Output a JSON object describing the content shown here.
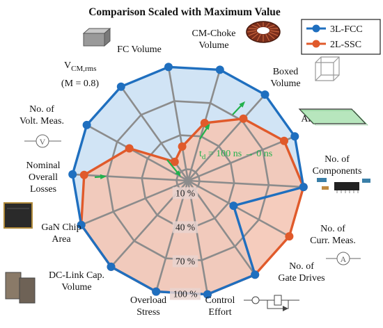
{
  "chart_data": {
    "type": "radar",
    "title": "Comparison Scaled with Maximum Value",
    "categories": [
      "CM-Choke Volume",
      "Boxed Volume",
      "Area PCB",
      "No. of Components",
      "No. of Curr. Meas.",
      "No. of Gate Drives",
      "Control Effort",
      "Overload Stress",
      "DC-Link Cap. Volume",
      "GaN Chip Area",
      "Nominal Overall Losses",
      "No. of Volt. Meas.",
      "VCM,rms (M = 0.8)",
      "FC Volume"
    ],
    "vcm_label": {
      "main": "V",
      "sub": "CM,rms",
      "cond": "(M = 0.8)"
    },
    "ring_labels": [
      "10 %",
      "40 %",
      "70 %",
      "100 %"
    ],
    "ring_values": [
      0.1,
      0.4,
      0.7,
      1.0
    ],
    "range": [
      0,
      1
    ],
    "series": [
      {
        "name": "3L-FCC",
        "color": "#1f6fbf",
        "fill": "#cfe3f4",
        "values": [
          1.0,
          1.0,
          1.0,
          1.0,
          0.45,
          1.0,
          1.0,
          1.0,
          1.0,
          1.0,
          1.0,
          1.0,
          1.0,
          1.0
        ]
      },
      {
        "name": "2L-SSC",
        "color": "#e05a2b",
        "fill": "#f4c7b6",
        "values": [
          0.52,
          0.72,
          0.9,
          1.0,
          1.0,
          1.0,
          1.0,
          1.0,
          1.0,
          1.0,
          0.9,
          0.58,
          0.2,
          0.3
        ]
      }
    ],
    "annotation": {
      "text_pre": "t",
      "text_sub": "d",
      "text_post": " = 100 ns → 0 ns"
    },
    "legend_position": "top-right",
    "grid": true
  }
}
